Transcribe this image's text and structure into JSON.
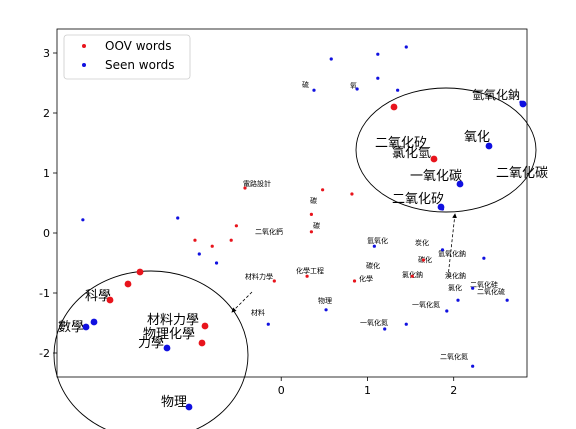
{
  "chart_data": {
    "type": "scatter",
    "xlim": [
      -2.6,
      2.85
    ],
    "ylim": [
      -2.4,
      3.4
    ],
    "xticks": [
      0,
      1,
      2
    ],
    "yticks": [
      -2,
      -1,
      0,
      1,
      2,
      3
    ],
    "grid": false,
    "legend": {
      "placement": "top-left",
      "entries": [
        {
          "label": "OOV words",
          "color": "#e8141c"
        },
        {
          "label": "Seen words",
          "color": "#1010e0"
        }
      ]
    },
    "series": [
      {
        "name": "OOV words",
        "color": "#e8141c",
        "points": [
          {
            "x": 1.32,
            "y": 2.08
          },
          {
            "x": 1.77,
            "y": 1.22
          },
          {
            "x": -0.42,
            "y": 0.75
          },
          {
            "x": 0.48,
            "y": 0.72
          },
          {
            "x": 0.82,
            "y": 0.65
          },
          {
            "x": 0.35,
            "y": 0.31
          },
          {
            "x": 0.35,
            "y": 0.02
          },
          {
            "x": -0.52,
            "y": 0.12
          },
          {
            "x": -0.58,
            "y": -0.12
          },
          {
            "x": -1.0,
            "y": -0.12
          },
          {
            "x": -0.8,
            "y": -0.22
          },
          {
            "x": 0.3,
            "y": -0.72
          },
          {
            "x": 0.85,
            "y": -0.8
          },
          {
            "x": 1.52,
            "y": -0.72
          },
          {
            "x": -0.08,
            "y": -0.8
          },
          {
            "x": 1.65,
            "y": -0.45
          }
        ]
      },
      {
        "name": "Seen words",
        "color": "#1010e0",
        "points": [
          {
            "x": 2.42,
            "y": 1.45
          },
          {
            "x": 2.08,
            "y": 0.8
          },
          {
            "x": 1.87,
            "y": 0.4
          },
          {
            "x": 2.78,
            "y": 2.18
          },
          {
            "x": 0.58,
            "y": 2.9
          },
          {
            "x": 1.12,
            "y": 2.98
          },
          {
            "x": 1.45,
            "y": 3.1
          },
          {
            "x": 1.12,
            "y": 2.58
          },
          {
            "x": 0.88,
            "y": 2.4
          },
          {
            "x": 1.35,
            "y": 2.38
          },
          {
            "x": 0.38,
            "y": 2.38
          },
          {
            "x": -2.3,
            "y": 0.22
          },
          {
            "x": 1.08,
            "y": -0.22
          },
          {
            "x": 1.87,
            "y": -0.28
          },
          {
            "x": 2.35,
            "y": -0.42
          },
          {
            "x": 2.22,
            "y": -0.92
          },
          {
            "x": 2.62,
            "y": -1.12
          },
          {
            "x": 2.05,
            "y": -1.12
          },
          {
            "x": 1.92,
            "y": -1.3
          },
          {
            "x": 1.45,
            "y": -1.52
          },
          {
            "x": 1.2,
            "y": -1.6
          },
          {
            "x": 0.52,
            "y": -1.28
          },
          {
            "x": -0.15,
            "y": -1.52
          },
          {
            "x": 2.22,
            "y": -2.22
          },
          {
            "x": -1.2,
            "y": 0.25
          },
          {
            "x": -0.95,
            "y": -0.35
          },
          {
            "x": -0.75,
            "y": -0.5
          }
        ]
      }
    ],
    "callouts": [
      {
        "name": "oov-top-right",
        "zoom_points": [
          {
            "label": "二氧化碳",
            "x": 2.42,
            "y": 1.45,
            "series": "Seen words"
          },
          {
            "label": "一氧化碳",
            "x": 2.08,
            "y": 0.8,
            "series": "Seen words"
          },
          {
            "label": "二氧化矽",
            "x": 1.87,
            "y": 0.4,
            "series": "Seen words"
          },
          {
            "label": "氧化",
            "x": 2.42,
            "y": 1.45,
            "series": "Seen words"
          }
        ]
      },
      {
        "name": "oov-bottom-left",
        "zoom_points": [
          {
            "label": "物理",
            "x": -2.05,
            "y": -2.3,
            "series": "Seen words"
          },
          {
            "label": "材料力學",
            "x": -1.75,
            "y": -1.58,
            "series": "OOV words"
          },
          {
            "label": "物理化學",
            "x": -1.8,
            "y": -1.9,
            "series": "OOV words"
          },
          {
            "label": "數學",
            "x": -2.35,
            "y": -1.6,
            "series": "Seen words"
          }
        ]
      }
    ]
  },
  "labels": {
    "callout_right": [
      {
        "text": "氫氧化鈉",
        "size": 12
      },
      {
        "text": "二氧化矽",
        "size": 13
      },
      {
        "text": "氯化氫",
        "size": 13
      },
      {
        "text": "氧化",
        "size": 13
      },
      {
        "text": "一氧化碳",
        "size": 13
      },
      {
        "text": "二氧化碳",
        "size": 13
      },
      {
        "text": "二氧化矽",
        "size": 13
      }
    ],
    "callout_left": [
      {
        "text": "數學",
        "size": 13
      },
      {
        "text": "科學",
        "size": 13
      },
      {
        "text": "材料力學",
        "size": 13
      },
      {
        "text": "物理化學",
        "size": 13
      },
      {
        "text": "力學",
        "size": 13
      },
      {
        "text": "物理",
        "size": 13
      }
    ],
    "small": [
      {
        "text": "碳化",
        "size": 7
      },
      {
        "text": "碳化",
        "size": 7
      },
      {
        "text": "炭化",
        "size": 7
      },
      {
        "text": "氫氧化",
        "size": 7
      },
      {
        "text": "碳",
        "size": 7
      },
      {
        "text": "碳",
        "size": 7
      },
      {
        "text": "硫",
        "size": 7
      },
      {
        "text": "氧",
        "size": 7
      },
      {
        "text": "電路設計",
        "size": 7
      },
      {
        "text": "材料",
        "size": 7
      },
      {
        "text": "材料力學",
        "size": 7
      },
      {
        "text": "化學工程",
        "size": 7
      },
      {
        "text": "二氧化鈣",
        "size": 7
      },
      {
        "text": "氫氧化鈉",
        "size": 7
      },
      {
        "text": "溴化鈉",
        "size": 7
      },
      {
        "text": "二氧化硅",
        "size": 7
      },
      {
        "text": "氯化鈉",
        "size": 7
      },
      {
        "text": "一氧化氮",
        "size": 7
      },
      {
        "text": "物理",
        "size": 7
      },
      {
        "text": "化學",
        "size": 7
      },
      {
        "text": "一氧化氮",
        "size": 7
      },
      {
        "text": "氯化",
        "size": 7
      },
      {
        "text": "二氧化硫",
        "size": 7
      },
      {
        "text": "二氧化氮",
        "size": 7
      }
    ]
  }
}
